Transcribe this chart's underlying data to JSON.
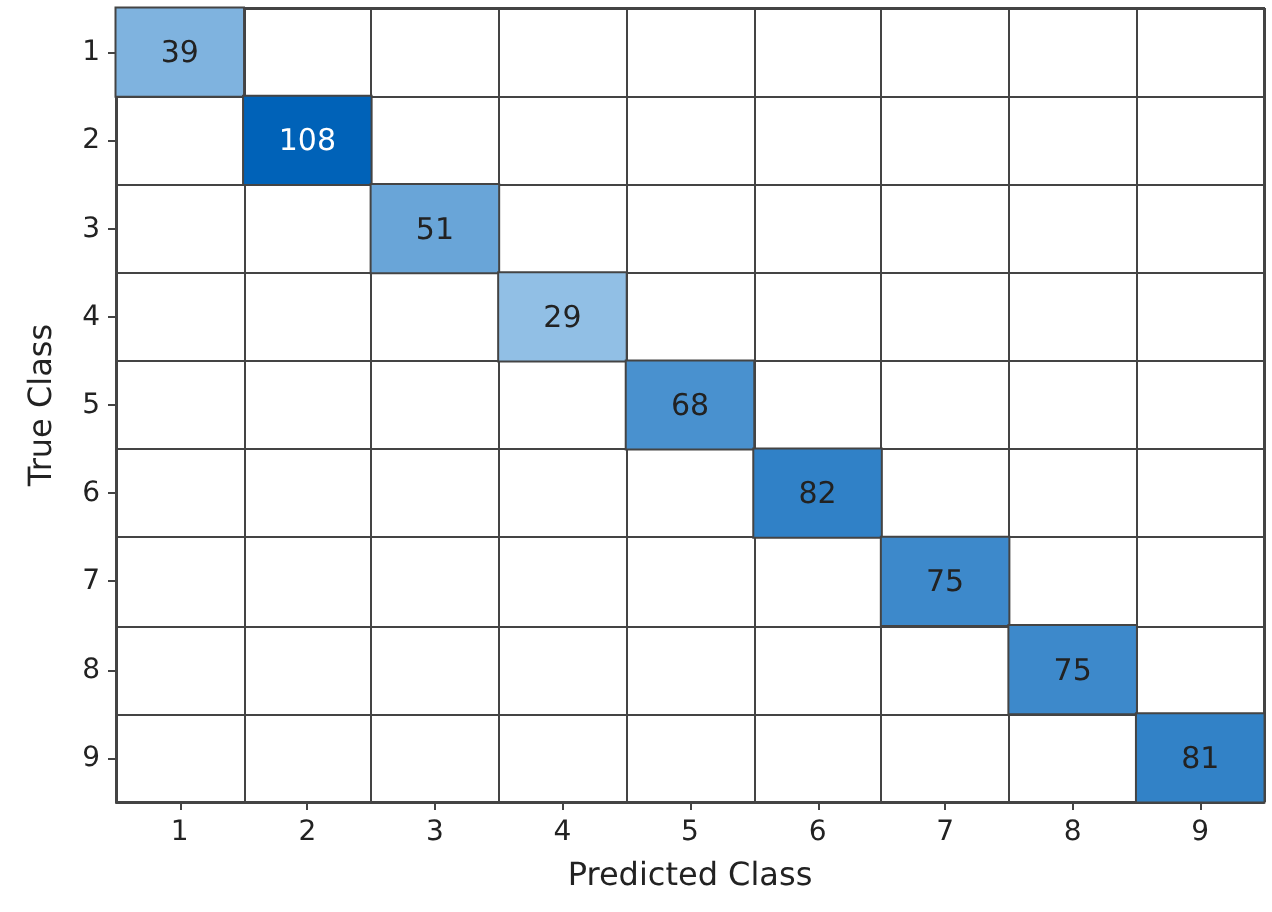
{
  "chart_data": {
    "type": "heatmap",
    "xlabel": "Predicted Class",
    "ylabel": "True Class",
    "categories": [
      "1",
      "2",
      "3",
      "4",
      "5",
      "6",
      "7",
      "8",
      "9"
    ],
    "y_categories": [
      "1",
      "2",
      "3",
      "4",
      "5",
      "6",
      "7",
      "8",
      "9"
    ],
    "cells": [
      [
        39,
        null,
        null,
        null,
        null,
        null,
        null,
        null,
        null
      ],
      [
        null,
        108,
        null,
        null,
        null,
        null,
        null,
        null,
        null
      ],
      [
        null,
        null,
        51,
        null,
        null,
        null,
        null,
        null,
        null
      ],
      [
        null,
        null,
        null,
        29,
        null,
        null,
        null,
        null,
        null
      ],
      [
        null,
        null,
        null,
        null,
        68,
        null,
        null,
        null,
        null
      ],
      [
        null,
        null,
        null,
        null,
        null,
        82,
        null,
        null,
        null
      ],
      [
        null,
        null,
        null,
        null,
        null,
        null,
        75,
        null,
        null
      ],
      [
        null,
        null,
        null,
        null,
        null,
        null,
        null,
        75,
        null
      ],
      [
        null,
        null,
        null,
        null,
        null,
        null,
        null,
        null,
        81
      ]
    ],
    "data_labels": true
  }
}
